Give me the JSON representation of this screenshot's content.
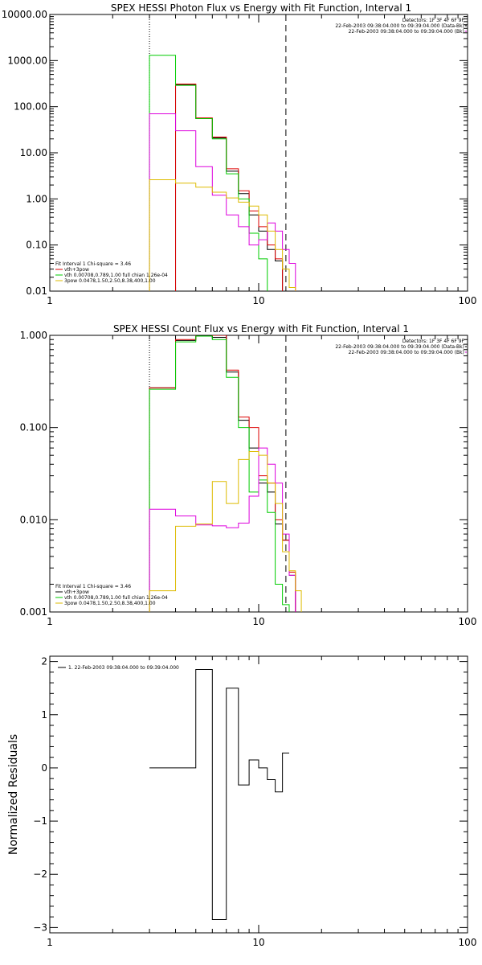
{
  "chart_data": [
    {
      "type": "line",
      "title": "SPEX HESSI Photon Flux vs Energy with Fit Function, Interval 1",
      "xlabel": "",
      "ylabel": "",
      "xscale": "log",
      "yscale": "log",
      "xlim": [
        1,
        100
      ],
      "ylim": [
        0.01,
        10000
      ],
      "xticks": [
        1,
        10,
        100
      ],
      "xtick_labels": [
        "1",
        "10",
        "100"
      ],
      "yticks": [
        0.01,
        0.1,
        1,
        10,
        100,
        1000,
        10000
      ],
      "ytick_labels": [
        "0.01",
        "0.10",
        "1.00",
        "10.00",
        "100.00",
        "1000.00",
        "10000.00"
      ],
      "vlines": [
        {
          "x": 3.0,
          "style": "dotted"
        },
        {
          "x": 13.5,
          "style": "dashed"
        }
      ],
      "info_lines": [
        "Detectors: 1F 3F 4F 6F 9F",
        "22-Feb-2003 09:38:04.000 to 09:39:04.000 (Data-Bk)",
        "22-Feb-2003 09:38:04.000 to 09:39:04.000 (Bk)"
      ],
      "fit_lines": [
        "Fit Interval 1   Chi-square = 3.46",
        "vth+3pow",
        "vth 0.00708,0.789,1.00  full chian 1.26e-04",
        "3pow 0.0478,1.50,2.50,8.38,400,1.00"
      ],
      "fit_colors": [
        "#dd0000",
        "#00cc00",
        "#ddbb00"
      ],
      "x_edges": [
        3,
        4,
        5,
        6,
        7,
        8,
        9,
        10,
        11,
        12,
        13,
        14,
        15,
        16
      ],
      "series": [
        {
          "color": "#000000",
          "values": [
            null,
            300,
            55,
            21,
            4,
            1.3,
            0.45,
            0.2,
            0.08,
            0.045,
            null,
            null,
            null
          ]
        },
        {
          "color": "#dd0000",
          "values": [
            null,
            310,
            57,
            22,
            4.5,
            1.5,
            0.55,
            0.25,
            0.1,
            0.05,
            null,
            null,
            null
          ]
        },
        {
          "color": "#00cc00",
          "values": [
            1300,
            290,
            55,
            20,
            3.5,
            1.0,
            0.18,
            0.05,
            0.008,
            null,
            null,
            null,
            null
          ]
        },
        {
          "color": "#dd00dd",
          "values": [
            70,
            30,
            5,
            1.2,
            0.45,
            0.25,
            0.1,
            0.13,
            0.3,
            0.2,
            0.08,
            0.04,
            null
          ]
        },
        {
          "color": "#ddbb00",
          "values": [
            2.6,
            2.2,
            1.8,
            1.4,
            1.05,
            0.85,
            0.7,
            0.45,
            0.2,
            0.08,
            0.03,
            0.012,
            0.008
          ]
        }
      ]
    },
    {
      "type": "line",
      "title": "SPEX HESSI Count Flux vs Energy with Fit Function, Interval 1",
      "xlabel": "",
      "ylabel": "",
      "xscale": "log",
      "yscale": "log",
      "xlim": [
        1,
        100
      ],
      "ylim": [
        0.001,
        1
      ],
      "xticks": [
        1,
        10,
        100
      ],
      "xtick_labels": [
        "1",
        "10",
        "100"
      ],
      "yticks": [
        0.001,
        0.01,
        0.1,
        1
      ],
      "ytick_labels": [
        "0.001",
        "0.010",
        "0.100",
        "1.000"
      ],
      "vlines": [
        {
          "x": 3.0,
          "style": "dotted"
        },
        {
          "x": 13.5,
          "style": "dashed"
        }
      ],
      "info_lines": [
        "Detectors: 1F 3F 4F 6F 9F",
        "22-Feb-2003 09:38:04.000 to 09:39:04.000 (Data-Bk)",
        "22-Feb-2003 09:38:04.000 to 09:39:04.000 (Bk)"
      ],
      "fit_lines": [
        "Fit Interval 1   Chi-square = 3.46",
        "vth+3pow",
        "vth 0.00708,0.789,1.00  full chian 1.26e-04",
        "3pow 0.0478,1.50,2.50,8.38,400,1.00"
      ],
      "fit_colors": [
        "#000000",
        "#00cc00",
        "#ddbb00"
      ],
      "x_edges": [
        3,
        4,
        5,
        6,
        7,
        8,
        9,
        10,
        11,
        12,
        13,
        14,
        15,
        16
      ],
      "series": [
        {
          "color": "#000000",
          "values": [
            0.27,
            0.88,
            1.0,
            0.95,
            0.4,
            0.12,
            0.06,
            0.025,
            0.02,
            0.009,
            0.006,
            0.0025,
            null
          ]
        },
        {
          "color": "#dd0000",
          "values": [
            0.27,
            0.9,
            1.05,
            1.0,
            0.42,
            0.13,
            0.1,
            0.03,
            0.025,
            0.01,
            0.006,
            0.0027,
            null
          ]
        },
        {
          "color": "#00cc00",
          "values": [
            0.26,
            0.85,
            0.98,
            0.9,
            0.35,
            0.1,
            0.02,
            0.027,
            0.012,
            0.002,
            0.0012,
            null,
            null
          ]
        },
        {
          "color": "#dd00dd",
          "values": [
            0.013,
            0.011,
            0.0088,
            0.0086,
            0.0082,
            0.0092,
            0.018,
            0.06,
            0.04,
            0.025,
            0.007,
            0.0025,
            null
          ]
        },
        {
          "color": "#ddbb00",
          "values": [
            0.0017,
            0.0085,
            0.009,
            0.026,
            0.015,
            0.045,
            0.055,
            0.05,
            0.025,
            0.015,
            0.0045,
            0.0028,
            0.0017
          ]
        }
      ]
    },
    {
      "type": "line",
      "title": "",
      "xlabel": "",
      "ylabel": "Normalized Residuals",
      "xscale": "log",
      "yscale": "linear",
      "xlim": [
        1,
        100
      ],
      "ylim": [
        -3.1,
        2.1
      ],
      "xticks": [
        1,
        10,
        100
      ],
      "xtick_labels": [
        "1",
        "10",
        "100"
      ],
      "yticks": [
        -3,
        -2,
        -1,
        0,
        1,
        2
      ],
      "ytick_labels": [
        "−3",
        "−2",
        "−1",
        "0",
        "1",
        "2"
      ],
      "legend": "1. 22-Feb-2003 09:38:04.000 to 09:39:04.000",
      "x_edges": [
        3,
        4,
        5,
        6,
        7,
        8,
        9,
        10,
        11,
        12,
        13,
        14
      ],
      "series": [
        {
          "color": "#000000",
          "values": [
            0.0,
            0.0,
            1.85,
            -2.85,
            1.5,
            -0.32,
            0.15,
            0.0,
            -0.22,
            -0.45,
            0.28
          ]
        }
      ]
    }
  ]
}
